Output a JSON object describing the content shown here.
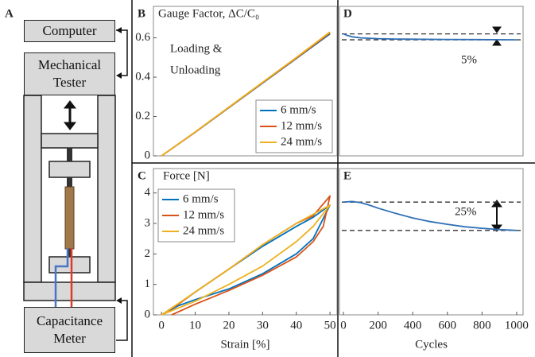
{
  "diagram": {
    "panel_label": "A",
    "boxes": [
      "Computer",
      "Mechanical Tester",
      "Capacitance Meter"
    ]
  },
  "chart_data": [
    {
      "type": "line",
      "panel_label": "B",
      "title": "Gauge Factor, ΔC/C₀",
      "annotation": [
        "Loading &",
        "Unloading"
      ],
      "xlim": [
        -2.4,
        52.1
      ],
      "ylim": [
        0,
        0.76
      ],
      "yticks": [
        0,
        0.2,
        0.4,
        0.6
      ],
      "legend": "lower right",
      "series": [
        {
          "name": "6 mm/s",
          "color": "#0072bd",
          "x": [
            0,
            10,
            20,
            30,
            40,
            50
          ],
          "values": [
            0,
            0.12,
            0.245,
            0.37,
            0.495,
            0.62
          ]
        },
        {
          "name": "12 mm/s",
          "color": "#d95319",
          "x": [
            0,
            10,
            20,
            30,
            40,
            50
          ],
          "values": [
            0,
            0.121,
            0.246,
            0.372,
            0.497,
            0.625
          ]
        },
        {
          "name": "24 mm/s",
          "color": "#edb120",
          "x": [
            0,
            10,
            20,
            30,
            40,
            50
          ],
          "values": [
            0,
            0.122,
            0.248,
            0.374,
            0.5,
            0.63
          ]
        }
      ]
    },
    {
      "type": "line",
      "panel_label": "C",
      "title": "Force [N]",
      "xlabel": "Strain [%]",
      "xlim": [
        -2.4,
        52.1
      ],
      "ylim": [
        0,
        4.8
      ],
      "xticks": [
        0,
        10,
        20,
        30,
        40,
        50
      ],
      "yticks": [
        0,
        1,
        2,
        3,
        4
      ],
      "legend": "upper left",
      "series": [
        {
          "name": "6 mm/s",
          "color": "#0072bd",
          "x": [
            0,
            5,
            10,
            20,
            30,
            40,
            45,
            50,
            45,
            40,
            30,
            20,
            10,
            5,
            0
          ],
          "values": [
            0,
            0.3,
            0.5,
            0.85,
            1.35,
            2.0,
            2.5,
            3.6,
            3.2,
            2.9,
            2.25,
            1.5,
            0.75,
            0.35,
            0
          ]
        },
        {
          "name": "12 mm/s",
          "color": "#d95319",
          "x": [
            3,
            10,
            20,
            30,
            40,
            45,
            48,
            50,
            45,
            40,
            30,
            20,
            10,
            5,
            0
          ],
          "values": [
            0,
            0.35,
            0.8,
            1.3,
            1.9,
            2.4,
            2.9,
            3.9,
            3.25,
            3.0,
            2.3,
            1.5,
            0.75,
            0.35,
            0
          ]
        },
        {
          "name": "24 mm/s",
          "color": "#edb120",
          "x": [
            0,
            10,
            20,
            30,
            40,
            45,
            50,
            45,
            40,
            30,
            20,
            10,
            0
          ],
          "values": [
            0,
            0.45,
            1.0,
            1.6,
            2.4,
            2.9,
            3.6,
            3.3,
            3.0,
            2.3,
            1.5,
            0.75,
            0
          ]
        }
      ]
    },
    {
      "type": "line",
      "panel_label": "D",
      "annotation": [
        "5%"
      ],
      "xlim": [
        -23,
        1037
      ],
      "ylim": [
        0,
        0.76
      ],
      "reference_lines": [
        0.62,
        0.59
      ],
      "series": [
        {
          "color": "#2f6fb5",
          "x": [
            0,
            20,
            50,
            100,
            200,
            300,
            400,
            600,
            800,
            1000
          ],
          "values": [
            0.62,
            0.613,
            0.605,
            0.6,
            0.596,
            0.594,
            0.593,
            0.592,
            0.591,
            0.59
          ]
        }
      ]
    },
    {
      "type": "line",
      "panel_label": "E",
      "annotation": [
        "25%"
      ],
      "xlabel": "Cycles",
      "xlim": [
        -23,
        1037
      ],
      "ylim": [
        0,
        4.8
      ],
      "xticks": [
        0,
        200,
        400,
        600,
        800,
        1000
      ],
      "reference_lines": [
        3.7,
        2.77
      ],
      "series": [
        {
          "color": "#2f6fb5",
          "x": [
            0,
            50,
            100,
            150,
            200,
            300,
            400,
            500,
            600,
            700,
            800,
            900,
            1000
          ],
          "values": [
            3.7,
            3.72,
            3.68,
            3.6,
            3.5,
            3.33,
            3.18,
            3.06,
            2.97,
            2.89,
            2.84,
            2.8,
            2.77
          ]
        }
      ]
    }
  ]
}
